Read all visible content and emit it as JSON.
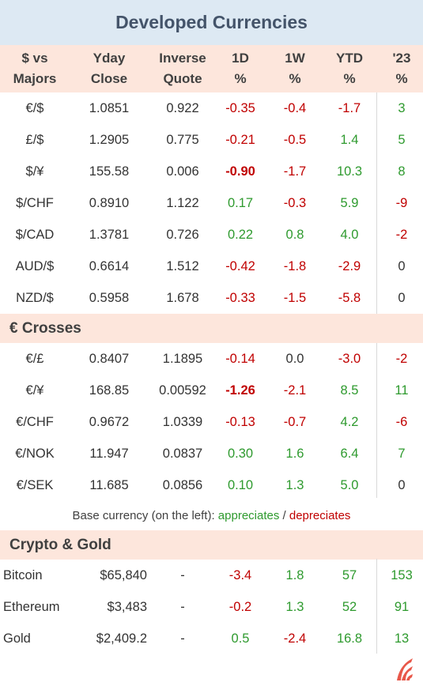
{
  "title": "Developed Currencies",
  "headers": [
    [
      "$  vs",
      "Majors"
    ],
    [
      "Yday",
      "Close"
    ],
    [
      "Inverse",
      "Quote"
    ],
    [
      "1D",
      "%"
    ],
    [
      "1W",
      "%"
    ],
    [
      "YTD",
      "%"
    ],
    [
      "'23",
      "%"
    ]
  ],
  "majors": [
    {
      "pair": "€/$",
      "close": "1.0851",
      "inverse": "0.922",
      "d1": "-0.35",
      "w1": "-0.4",
      "ytd": "-1.7",
      "y23": "3"
    },
    {
      "pair": "£/$",
      "close": "1.2905",
      "inverse": "0.775",
      "d1": "-0.21",
      "w1": "-0.5",
      "ytd": "1.4",
      "y23": "5"
    },
    {
      "pair": "$/¥",
      "close": "155.58",
      "inverse": "0.006",
      "d1": "-0.90",
      "w1": "-1.7",
      "ytd": "10.3",
      "y23": "8"
    },
    {
      "pair": "$/CHF",
      "close": "0.8910",
      "inverse": "1.122",
      "d1": "0.17",
      "w1": "-0.3",
      "ytd": "5.9",
      "y23": "-9"
    },
    {
      "pair": "$/CAD",
      "close": "1.3781",
      "inverse": "0.726",
      "d1": "0.22",
      "w1": "0.8",
      "ytd": "4.0",
      "y23": "-2"
    },
    {
      "pair": "AUD/$",
      "close": "0.6614",
      "inverse": "1.512",
      "d1": "-0.42",
      "w1": "-1.8",
      "ytd": "-2.9",
      "y23": "0"
    },
    {
      "pair": "NZD/$",
      "close": "0.5958",
      "inverse": "1.678",
      "d1": "-0.33",
      "w1": "-1.5",
      "ytd": "-5.8",
      "y23": "0"
    }
  ],
  "crosses_title": "€ Crosses",
  "crosses": [
    {
      "pair": "€/£",
      "close": "0.8407",
      "inverse": "1.1895",
      "d1": "-0.14",
      "w1": "0.0",
      "ytd": "-3.0",
      "y23": "-2"
    },
    {
      "pair": "€/¥",
      "close": "168.85",
      "inverse": "0.00592",
      "d1": "-1.26",
      "w1": "-2.1",
      "ytd": "8.5",
      "y23": "11"
    },
    {
      "pair": "€/CHF",
      "close": "0.9672",
      "inverse": "1.0339",
      "d1": "-0.13",
      "w1": "-0.7",
      "ytd": "4.2",
      "y23": "-6"
    },
    {
      "pair": "€/NOK",
      "close": "11.947",
      "inverse": "0.0837",
      "d1": "0.30",
      "w1": "1.6",
      "ytd": "6.4",
      "y23": "7"
    },
    {
      "pair": "€/SEK",
      "close": "11.685",
      "inverse": "0.0856",
      "d1": "0.10",
      "w1": "1.3",
      "ytd": "5.0",
      "y23": "0"
    }
  ],
  "legend": {
    "prefix": "Base currency (on the left):  ",
    "appreciates": "appreciates",
    "sep": " / ",
    "depreciates": "depreciates"
  },
  "crypto_title": "Crypto & Gold",
  "crypto": [
    {
      "pair": "Bitcoin",
      "close": "$65,840",
      "inverse": "-",
      "d1": "-3.4",
      "w1": "1.8",
      "ytd": "57",
      "y23": "153"
    },
    {
      "pair": "Ethereum",
      "close": "$3,483",
      "inverse": "-",
      "d1": "-0.2",
      "w1": "1.3",
      "ytd": "52",
      "y23": "91"
    },
    {
      "pair": "Gold",
      "close": "$2,409.2",
      "inverse": "-",
      "d1": "0.5",
      "w1": "-2.4",
      "ytd": "16.8",
      "y23": "13"
    }
  ],
  "bold_cells": [
    "majors.2.d1",
    "crosses.1.d1"
  ],
  "colors": {
    "positive": "#2e9a2e",
    "negative": "#c00000",
    "header_bg": "#fde6dc",
    "title_bg": "#dde9f3"
  }
}
